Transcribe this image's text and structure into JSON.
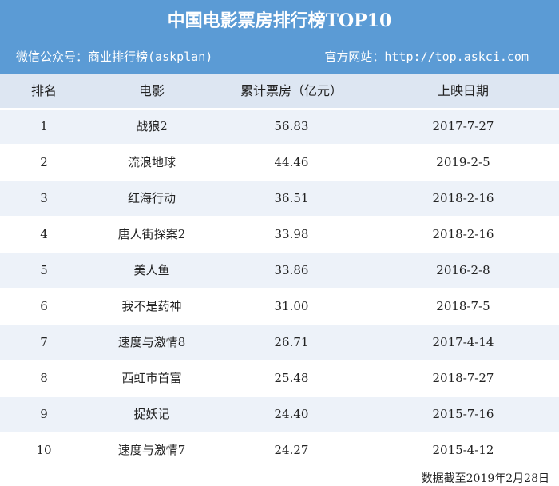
{
  "header": {
    "title": "中国电影票房排行榜TOP10",
    "subtitle_left": "微信公众号：商业排行榜(askplan)",
    "subtitle_right": "官方网站：http://top.askci.com"
  },
  "table": {
    "columns": [
      "排名",
      "电影",
      "累计票房（亿元）",
      "上映日期"
    ],
    "rows": [
      [
        "1",
        "战狼2",
        "56.83",
        "2017-7-27"
      ],
      [
        "2",
        "流浪地球",
        "44.46",
        "2019-2-5"
      ],
      [
        "3",
        "红海行动",
        "36.51",
        "2018-2-16"
      ],
      [
        "4",
        "唐人街探案2",
        "33.98",
        "2018-2-16"
      ],
      [
        "5",
        "美人鱼",
        "33.86",
        "2016-2-8"
      ],
      [
        "6",
        "我不是药神",
        "31.00",
        "2018-7-5"
      ],
      [
        "7",
        "速度与激情8",
        "26.71",
        "2017-4-14"
      ],
      [
        "8",
        "西虹市首富",
        "25.48",
        "2018-7-27"
      ],
      [
        "9",
        "捉妖记",
        "24.40",
        "2015-7-16"
      ],
      [
        "10",
        "速度与激情7",
        "24.27",
        "2015-4-12"
      ]
    ]
  },
  "footer": {
    "note": "数据截至2019年2月28日"
  }
}
